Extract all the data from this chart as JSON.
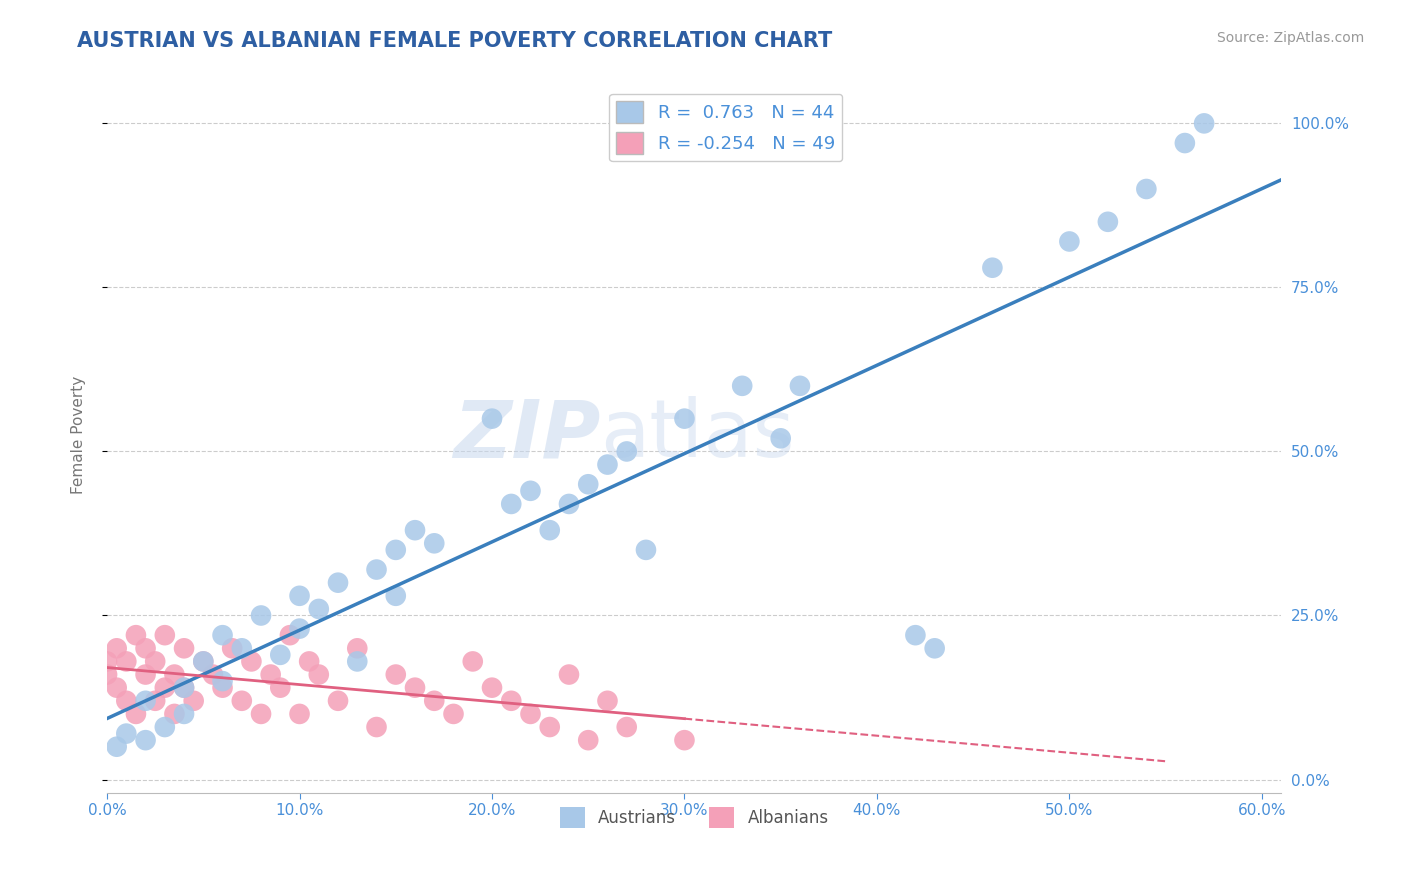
{
  "title": "AUSTRIAN VS ALBANIAN FEMALE POVERTY CORRELATION CHART",
  "source": "Source: ZipAtlas.com",
  "ylabel": "Female Poverty",
  "watermark_zip": "ZIP",
  "watermark_atlas": "atlas",
  "legend_austrians": "Austrians",
  "legend_albanians": "Albanians",
  "r_austrians": 0.763,
  "n_austrians": 44,
  "r_albanians": -0.254,
  "n_albanians": 49,
  "color_austrians": "#A8C8E8",
  "color_albanians": "#F4A0B8",
  "line_color_austrians": "#3A7FBD",
  "line_color_albanians": "#E06080",
  "xlim": [
    0.0,
    0.61
  ],
  "ylim": [
    -0.02,
    1.07
  ],
  "xticks": [
    0.0,
    0.1,
    0.2,
    0.3,
    0.4,
    0.5,
    0.6
  ],
  "xticklabels": [
    "0.0%",
    "10.0%",
    "20.0%",
    "30.0%",
    "40.0%",
    "50.0%",
    "60.0%"
  ],
  "yticks": [
    0.0,
    0.25,
    0.5,
    0.75,
    1.0
  ],
  "yticklabels_right": [
    "0.0%",
    "25.0%",
    "50.0%",
    "75.0%",
    "100.0%"
  ],
  "background": "#FFFFFF",
  "grid_color": "#CCCCCC",
  "title_color": "#2E5FA3",
  "axis_color": "#4A90D9",
  "austrians_x": [
    0.005,
    0.01,
    0.02,
    0.02,
    0.03,
    0.04,
    0.04,
    0.05,
    0.06,
    0.06,
    0.07,
    0.08,
    0.09,
    0.1,
    0.1,
    0.11,
    0.12,
    0.13,
    0.14,
    0.15,
    0.15,
    0.16,
    0.17,
    0.2,
    0.21,
    0.22,
    0.23,
    0.24,
    0.25,
    0.26,
    0.27,
    0.28,
    0.3,
    0.33,
    0.35,
    0.36,
    0.42,
    0.43,
    0.46,
    0.5,
    0.52,
    0.54,
    0.56,
    0.57
  ],
  "austrians_y": [
    0.05,
    0.07,
    0.06,
    0.12,
    0.08,
    0.1,
    0.14,
    0.18,
    0.15,
    0.22,
    0.2,
    0.25,
    0.19,
    0.23,
    0.28,
    0.26,
    0.3,
    0.18,
    0.32,
    0.28,
    0.35,
    0.38,
    0.36,
    0.55,
    0.42,
    0.44,
    0.38,
    0.42,
    0.45,
    0.48,
    0.5,
    0.35,
    0.55,
    0.6,
    0.52,
    0.6,
    0.22,
    0.2,
    0.78,
    0.82,
    0.85,
    0.9,
    0.97,
    1.0
  ],
  "albanians_x": [
    0.0,
    0.0,
    0.005,
    0.005,
    0.01,
    0.01,
    0.015,
    0.015,
    0.02,
    0.02,
    0.025,
    0.025,
    0.03,
    0.03,
    0.035,
    0.035,
    0.04,
    0.04,
    0.045,
    0.05,
    0.055,
    0.06,
    0.065,
    0.07,
    0.075,
    0.08,
    0.085,
    0.09,
    0.095,
    0.1,
    0.105,
    0.11,
    0.12,
    0.13,
    0.14,
    0.15,
    0.16,
    0.17,
    0.18,
    0.19,
    0.2,
    0.21,
    0.22,
    0.23,
    0.24,
    0.25,
    0.26,
    0.27,
    0.3
  ],
  "albanians_y": [
    0.18,
    0.16,
    0.2,
    0.14,
    0.18,
    0.12,
    0.22,
    0.1,
    0.16,
    0.2,
    0.12,
    0.18,
    0.14,
    0.22,
    0.1,
    0.16,
    0.14,
    0.2,
    0.12,
    0.18,
    0.16,
    0.14,
    0.2,
    0.12,
    0.18,
    0.1,
    0.16,
    0.14,
    0.22,
    0.1,
    0.18,
    0.16,
    0.12,
    0.2,
    0.08,
    0.16,
    0.14,
    0.12,
    0.1,
    0.18,
    0.14,
    0.12,
    0.1,
    0.08,
    0.16,
    0.06,
    0.12,
    0.08,
    0.06
  ],
  "albanian_trend_solid_end": 0.3,
  "albanian_trend_dash_end": 0.55
}
